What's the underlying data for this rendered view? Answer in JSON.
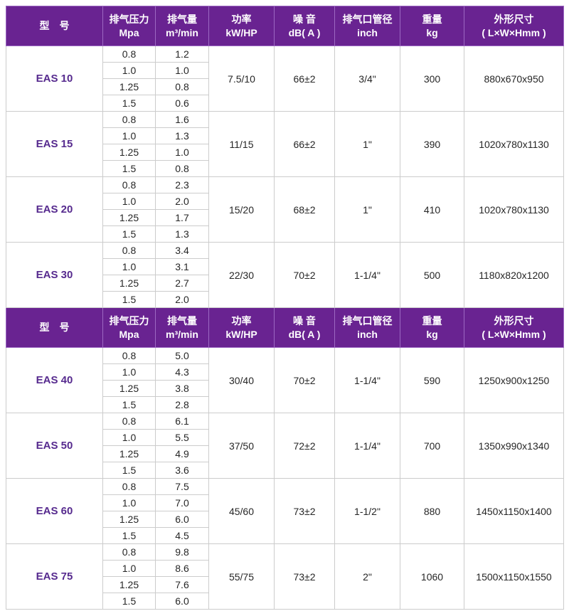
{
  "colors": {
    "header_bg": "#692391",
    "header_text": "#ffffff",
    "header_divider": "#9c68c2",
    "model_text": "#562a8e",
    "body_text": "#262626",
    "grid_border": "#cccccc"
  },
  "header": {
    "columns": [
      {
        "id": "model",
        "line1": "型　号",
        "line2": ""
      },
      {
        "id": "pressure",
        "line1": "排气压力",
        "line2": "Mpa"
      },
      {
        "id": "displacement",
        "line1": "排气量",
        "line2": "m³/min"
      },
      {
        "id": "power",
        "line1": "功率",
        "line2": "kW/HP"
      },
      {
        "id": "noise",
        "line1": "噪 音",
        "line2": "dB( A )"
      },
      {
        "id": "port",
        "line1": "排气口管径",
        "line2": "inch"
      },
      {
        "id": "weight",
        "line1": "重量",
        "line2": "kg"
      },
      {
        "id": "dims",
        "line1": "外形尺寸",
        "line2": "( L×W×Hmm )"
      }
    ]
  },
  "sections": [
    {
      "groups": [
        {
          "model": "EAS 10",
          "pressure_rows": [
            {
              "mpa": "0.8",
              "m3min": "1.2"
            },
            {
              "mpa": "1.0",
              "m3min": "1.0"
            },
            {
              "mpa": "1.25",
              "m3min": "0.8"
            },
            {
              "mpa": "1.5",
              "m3min": "0.6"
            }
          ],
          "power": "7.5/10",
          "noise": "66±2",
          "port": "3/4\"",
          "weight": "300",
          "dims": "880x670x950"
        },
        {
          "model": "EAS 15",
          "pressure_rows": [
            {
              "mpa": "0.8",
              "m3min": "1.6"
            },
            {
              "mpa": "1.0",
              "m3min": "1.3"
            },
            {
              "mpa": "1.25",
              "m3min": "1.0"
            },
            {
              "mpa": "1.5",
              "m3min": "0.8"
            }
          ],
          "power": "11/15",
          "noise": "66±2",
          "port": "1\"",
          "weight": "390",
          "dims": "1020x780x1130"
        },
        {
          "model": "EAS 20",
          "pressure_rows": [
            {
              "mpa": "0.8",
              "m3min": "2.3"
            },
            {
              "mpa": "1.0",
              "m3min": "2.0"
            },
            {
              "mpa": "1.25",
              "m3min": "1.7"
            },
            {
              "mpa": "1.5",
              "m3min": "1.3"
            }
          ],
          "power": "15/20",
          "noise": "68±2",
          "port": "1\"",
          "weight": "410",
          "dims": "1020x780x1130"
        },
        {
          "model": "EAS 30",
          "pressure_rows": [
            {
              "mpa": "0.8",
              "m3min": "3.4"
            },
            {
              "mpa": "1.0",
              "m3min": "3.1"
            },
            {
              "mpa": "1.25",
              "m3min": "2.7"
            },
            {
              "mpa": "1.5",
              "m3min": "2.0"
            }
          ],
          "power": "22/30",
          "noise": "70±2",
          "port": "1-1/4\"",
          "weight": "500",
          "dims": "1180x820x1200"
        }
      ]
    },
    {
      "groups": [
        {
          "model": "EAS 40",
          "pressure_rows": [
            {
              "mpa": "0.8",
              "m3min": "5.0"
            },
            {
              "mpa": "1.0",
              "m3min": "4.3"
            },
            {
              "mpa": "1.25",
              "m3min": "3.8"
            },
            {
              "mpa": "1.5",
              "m3min": "2.8"
            }
          ],
          "power": "30/40",
          "noise": "70±2",
          "port": "1-1/4\"",
          "weight": "590",
          "dims": "1250x900x1250"
        },
        {
          "model": "EAS 50",
          "pressure_rows": [
            {
              "mpa": "0.8",
              "m3min": "6.1"
            },
            {
              "mpa": "1.0",
              "m3min": "5.5"
            },
            {
              "mpa": "1.25",
              "m3min": "4.9"
            },
            {
              "mpa": "1.5",
              "m3min": "3.6"
            }
          ],
          "power": "37/50",
          "noise": "72±2",
          "port": "1-1/4\"",
          "weight": "700",
          "dims": "1350x990x1340"
        },
        {
          "model": "EAS 60",
          "pressure_rows": [
            {
              "mpa": "0.8",
              "m3min": "7.5"
            },
            {
              "mpa": "1.0",
              "m3min": "7.0"
            },
            {
              "mpa": "1.25",
              "m3min": "6.0"
            },
            {
              "mpa": "1.5",
              "m3min": "4.5"
            }
          ],
          "power": "45/60",
          "noise": "73±2",
          "port": "1-1/2\"",
          "weight": "880",
          "dims": "1450x1150x1400"
        },
        {
          "model": "EAS 75",
          "pressure_rows": [
            {
              "mpa": "0.8",
              "m3min": "9.8"
            },
            {
              "mpa": "1.0",
              "m3min": "8.6"
            },
            {
              "mpa": "1.25",
              "m3min": "7.6"
            },
            {
              "mpa": "1.5",
              "m3min": "6.0"
            }
          ],
          "power": "55/75",
          "noise": "73±2",
          "port": "2\"",
          "weight": "1060",
          "dims": "1500x1150x1550"
        }
      ]
    }
  ]
}
